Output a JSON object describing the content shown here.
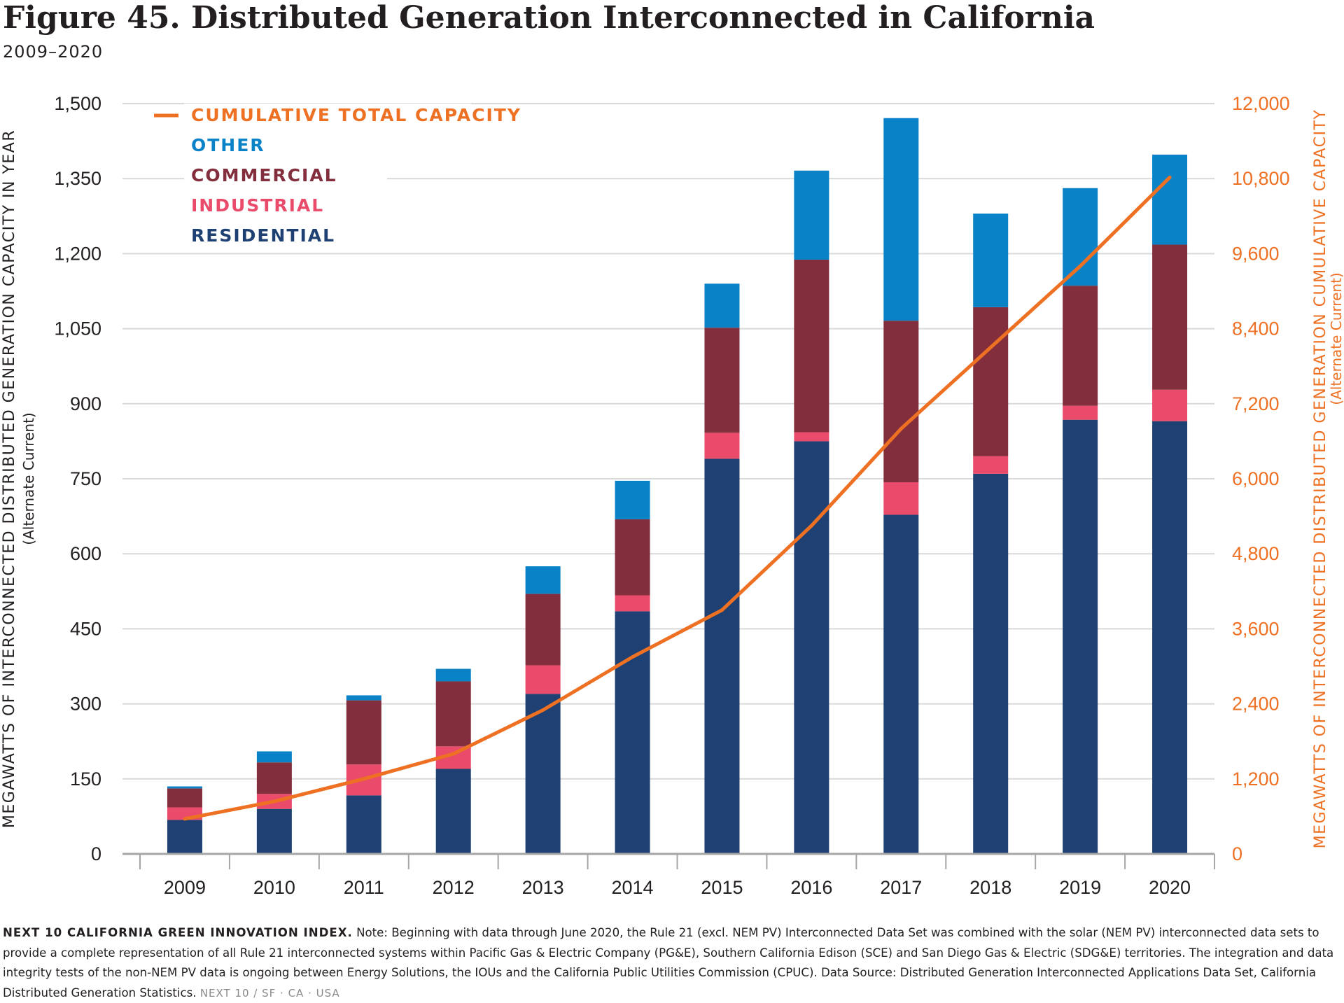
{
  "figure": {
    "title": "Figure 45. Distributed Generation Interconnected in California",
    "subtitle": "2009–2020"
  },
  "colors": {
    "residential": "#1e4072",
    "industrial": "#ea4b6b",
    "commercial": "#832e3c",
    "other": "#0a82c8",
    "cumulative": "#ee7023",
    "grid": "#d9d9d9",
    "text": "#231f20"
  },
  "chart_data": {
    "type": "bar",
    "stacked": true,
    "categories": [
      "2009",
      "2010",
      "2011",
      "2012",
      "2013",
      "2014",
      "2015",
      "2016",
      "2017",
      "2018",
      "2019",
      "2020"
    ],
    "series": [
      {
        "name": "RESIDENTIAL",
        "key": "residential",
        "values": [
          68,
          90,
          117,
          170,
          320,
          485,
          790,
          825,
          678,
          760,
          868,
          865
        ]
      },
      {
        "name": "INDUSTRIAL",
        "key": "industrial",
        "values": [
          25,
          30,
          62,
          45,
          57,
          32,
          52,
          18,
          65,
          35,
          28,
          63
        ]
      },
      {
        "name": "COMMERCIAL",
        "key": "commercial",
        "values": [
          38,
          63,
          128,
          130,
          143,
          152,
          210,
          345,
          323,
          298,
          240,
          290
        ]
      },
      {
        "name": "OTHER",
        "key": "other",
        "values": [
          4,
          22,
          10,
          25,
          55,
          77,
          88,
          178,
          405,
          187,
          195,
          180
        ]
      }
    ],
    "line_series": {
      "name": "CUMULATIVE TOTAL CAPACITY",
      "axis": "right",
      "values": [
        560,
        840,
        1200,
        1600,
        2300,
        3150,
        3900,
        5250,
        6800,
        8100,
        9400,
        10820
      ]
    },
    "legend_order": [
      "CUMULATIVE TOTAL CAPACITY",
      "OTHER",
      "COMMERCIAL",
      "INDUSTRIAL",
      "RESIDENTIAL"
    ],
    "legend_position": "top-left",
    "y_left": {
      "label": "MEGAWATTS OF INTERCONNECTED DISTRIBUTED GENERATION CAPACITY IN YEAR",
      "sublabel": "(Alternate Current)",
      "min": 0,
      "max": 1500,
      "ticks": [
        0,
        150,
        300,
        450,
        600,
        750,
        900,
        1050,
        1200,
        1350,
        1500
      ],
      "tick_labels": [
        "0",
        "150",
        "300",
        "450",
        "600",
        "750",
        "900",
        "1,050",
        "1,200",
        "1,350",
        "1,500"
      ]
    },
    "y_right": {
      "label": "MEGAWATTS OF INTERCONNECTED DISTRIBUTED GENERATION CUMULATIVE CAPACITY",
      "sublabel": "(Alternate Current)",
      "min": 0,
      "max": 12000,
      "ticks": [
        0,
        1200,
        2400,
        3600,
        4800,
        6000,
        7200,
        8400,
        9600,
        10800,
        12000
      ],
      "tick_labels": [
        "0",
        "1,200",
        "2,400",
        "3,600",
        "4,800",
        "6,000",
        "7,200",
        "8,400",
        "9,600",
        "10,800",
        "12,000"
      ]
    },
    "grid": true
  },
  "note": {
    "brand": "NEXT 10 CALIFORNIA GREEN INNOVATION INDEX.",
    "text": "Note: Beginning with data through June 2020, the Rule 21 (excl. NEM PV) Interconnected Data Set was combined with the solar (NEM PV) interconnected data sets to provide a complete representation of all Rule 21 interconnected systems within Pacific Gas & Electric Company (PG&E), Southern California Edison (SCE) and San Diego Gas & Electric (SDG&E) territories. The integration and data integrity tests of the non-NEM PV data is ongoing between Energy Solutions, the IOUs and the California Public Utilities Commission (CPUC). Data Source: Distributed Generation Interconnected Applications Data Set, California Distributed Generation Statistics.",
    "tail": "NEXT 10 / SF · CA · USA"
  }
}
